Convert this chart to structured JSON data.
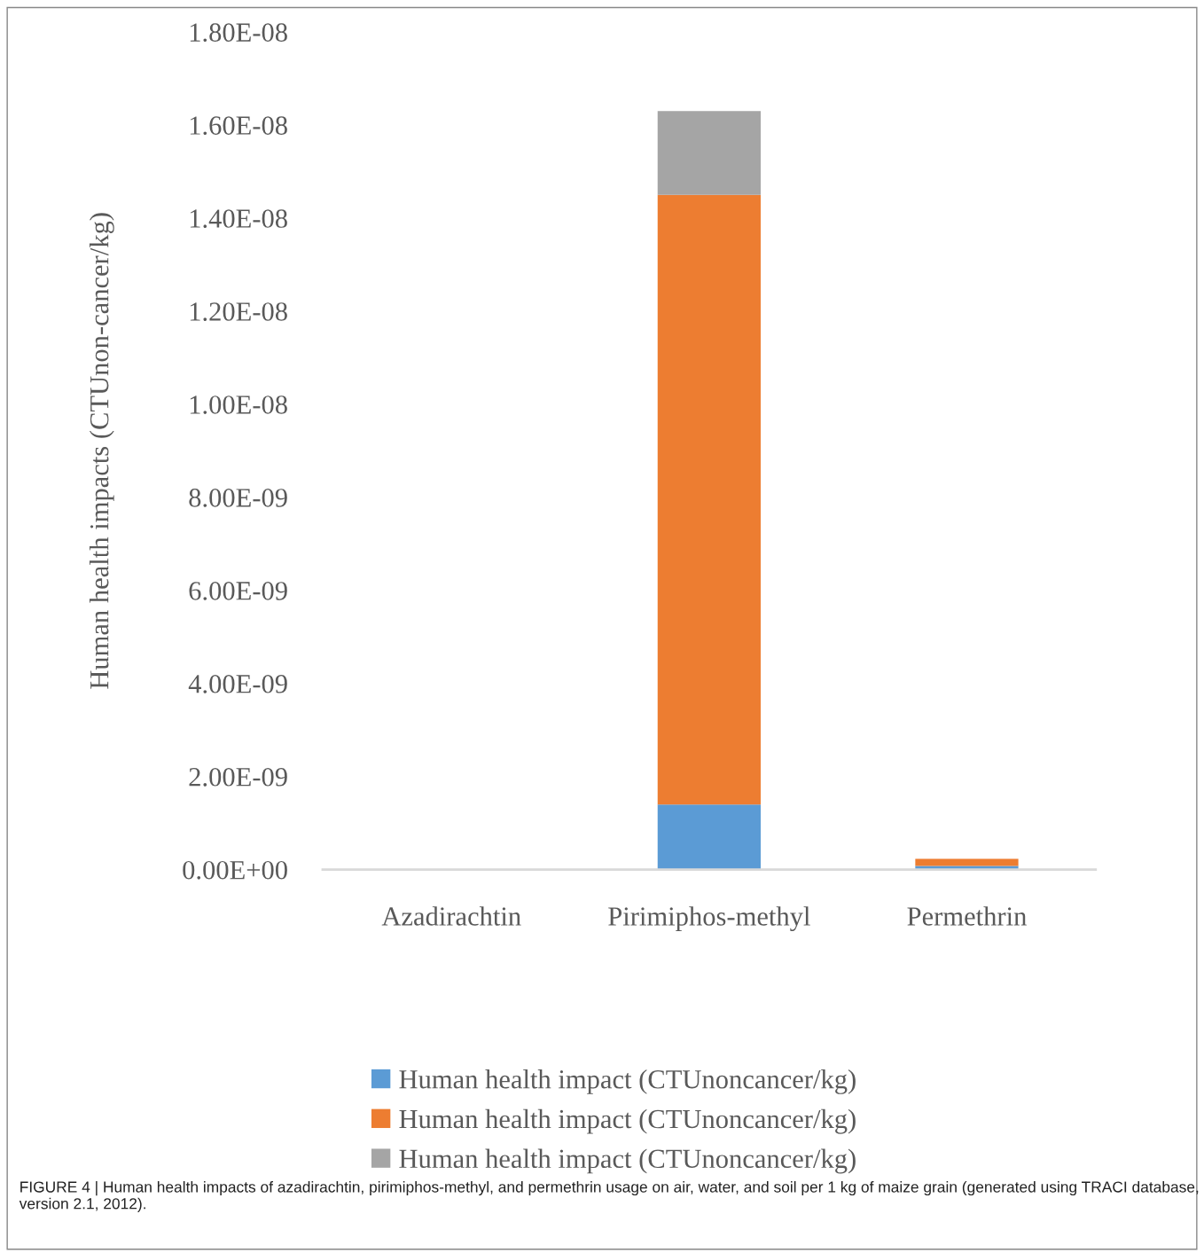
{
  "chart_data": {
    "type": "bar",
    "stacked": true,
    "ylabel": "Human health impacts (CTUnon-cancer/kg)",
    "categories": [
      "Azadirachtin",
      "Pirimiphos-methyl",
      "Permethrin"
    ],
    "series": [
      {
        "name": "Human health impact (CTUnoncancer/kg)",
        "color": "#5b9bd5",
        "values": [
          0,
          1.4e-09,
          8e-11
        ]
      },
      {
        "name": "Human health impact (CTUnoncancer/kg)",
        "color": "#ed7d31",
        "values": [
          0,
          1.31e-08,
          1.5e-10
        ]
      },
      {
        "name": "Human health impact (CTUnoncancer/kg)",
        "color": "#a5a5a5",
        "values": [
          0,
          1.8e-09,
          0
        ]
      }
    ],
    "ylim": [
      0,
      1.8e-08
    ],
    "yticks": [
      {
        "value": 0,
        "label": "0.00E+00"
      },
      {
        "value": 2e-09,
        "label": "2.00E-09"
      },
      {
        "value": 4e-09,
        "label": "4.00E-09"
      },
      {
        "value": 6e-09,
        "label": "6.00E-09"
      },
      {
        "value": 8e-09,
        "label": "8.00E-09"
      },
      {
        "value": 1e-08,
        "label": "1.00E-08"
      },
      {
        "value": 1.2e-08,
        "label": "1.20E-08"
      },
      {
        "value": 1.4e-08,
        "label": "1.40E-08"
      },
      {
        "value": 1.6e-08,
        "label": "1.60E-08"
      },
      {
        "value": 1.8e-08,
        "label": "1.80E-08"
      }
    ],
    "grid": false,
    "legend": "bottom",
    "annotations": [
      "FIGURE 4 | Human health impacts of azadirachtin, pirimiphos-methyl, and permethrin usage on air, water, and soil per 1 kg of maize grain (generated using TRACI database, version 2.1, 2012)."
    ]
  }
}
